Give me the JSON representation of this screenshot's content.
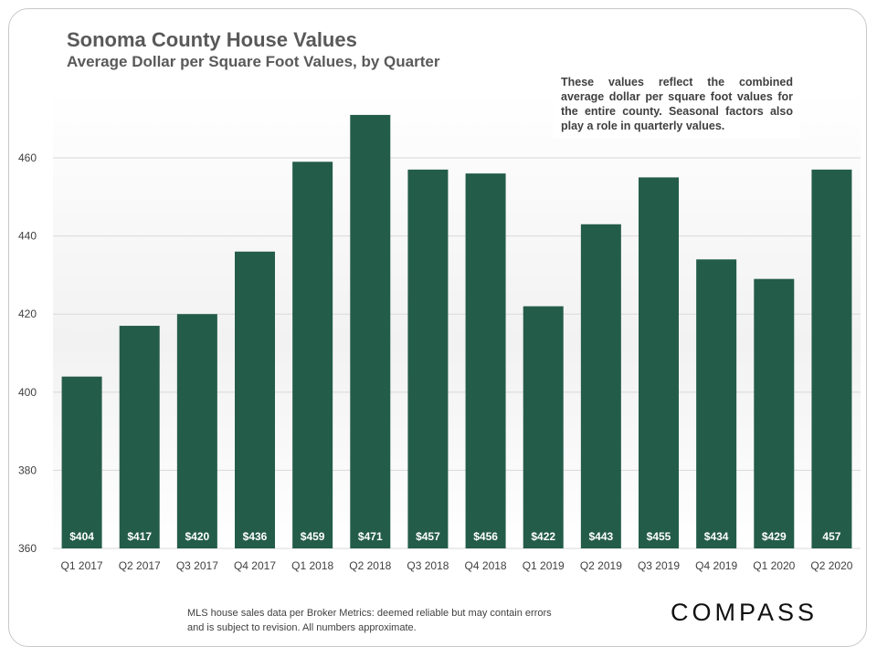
{
  "header": {
    "title": "Sonoma County House Values",
    "subtitle": "Average Dollar  per Square Foot Values, by Quarter"
  },
  "note": {
    "text": "These values reflect the combined average dollar per square foot values for the entire county. Seasonal factors also play a role in quarterly values."
  },
  "footer": {
    "text": "MLS house sales data per Broker Metrics:  deemed reliable but may contain errors and is subject to revision. All numbers approximate."
  },
  "logo": {
    "text": "COMPASS"
  },
  "colors": {
    "bar": "#245c4a",
    "label": "#ffffff",
    "grid": "#d9d9d9",
    "axis_text": "#404040"
  },
  "chart_data": {
    "type": "bar",
    "title": "Sonoma County House Values",
    "subtitle": "Average Dollar  per Square Foot Values, by Quarter",
    "xlabel": "",
    "ylabel": "",
    "categories": [
      "Q1 2017",
      "Q2 2017",
      "Q3 2017",
      "Q4 2017",
      "Q1 2018",
      "Q2 2018",
      "Q3 2018",
      "Q4 2018",
      "Q1 2019",
      "Q2 2019",
      "Q3 2019",
      "Q4 2019",
      "Q1 2020",
      "Q2 2020"
    ],
    "values": [
      404,
      417,
      420,
      436,
      459,
      471,
      457,
      456,
      422,
      443,
      455,
      434,
      429,
      457
    ],
    "data_labels": [
      "$404",
      "$417",
      "$420",
      "$436",
      "$459",
      "$471",
      "$457",
      "$456",
      "$422",
      "$443",
      "$455",
      "$434",
      "$429",
      "457"
    ],
    "ylim": [
      360,
      470
    ],
    "yticks": [
      360,
      380,
      400,
      420,
      440,
      460
    ],
    "ytick_labels": [
      "360",
      "380",
      "400",
      "420",
      "440",
      "460"
    ],
    "grid": true,
    "legend": "none"
  }
}
